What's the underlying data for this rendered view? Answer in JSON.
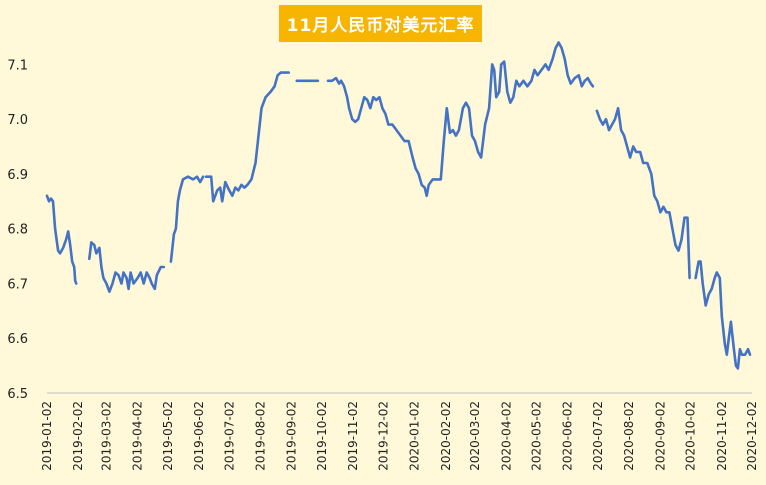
{
  "chart_data": {
    "type": "line",
    "title": "11月人民币对美元汇率",
    "xlabel": "",
    "ylabel": "",
    "ylim": [
      6.5,
      7.15
    ],
    "yticks": [
      "6.5",
      "6.6",
      "6.7",
      "6.8",
      "6.9",
      "7.0",
      "7.1"
    ],
    "xticks": [
      "2019-01-02",
      "2019-02-02",
      "2019-03-02",
      "2019-04-02",
      "2019-05-02",
      "2019-06-02",
      "2019-07-02",
      "2019-08-02",
      "2019-09-02",
      "2019-10-02",
      "2019-11-02",
      "2019-12-02",
      "2020-01-02",
      "2020-02-02",
      "2020-03-02",
      "2020-04-02",
      "2020-05-02",
      "2020-06-02",
      "2020-07-02",
      "2020-08-02",
      "2020-09-02",
      "2020-10-02",
      "2020-11-02",
      "2020-12-02"
    ],
    "grid": false,
    "line_color": "#4472c4",
    "series": [
      {
        "segments": [
          [
            [
              "2019-01-02",
              6.86
            ],
            [
              "2019-01-04",
              6.85
            ],
            [
              "2019-01-06",
              6.855
            ],
            [
              "2019-01-08",
              6.85
            ],
            [
              "2019-01-10",
              6.8
            ],
            [
              "2019-01-13",
              6.76
            ],
            [
              "2019-01-15",
              6.755
            ],
            [
              "2019-01-18",
              6.765
            ],
            [
              "2019-01-21",
              6.78
            ],
            [
              "2019-01-23",
              6.795
            ],
            [
              "2019-01-25",
              6.77
            ],
            [
              "2019-01-27",
              6.74
            ],
            [
              "2019-01-29",
              6.73
            ],
            [
              "2019-01-30",
              6.705
            ],
            [
              "2019-01-31",
              6.7
            ]
          ],
          [
            [
              "2019-02-13",
              6.745
            ],
            [
              "2019-02-15",
              6.775
            ],
            [
              "2019-02-18",
              6.77
            ],
            [
              "2019-02-20",
              6.755
            ],
            [
              "2019-02-23",
              6.765
            ],
            [
              "2019-02-25",
              6.73
            ],
            [
              "2019-02-27",
              6.71
            ],
            [
              "2019-03-02",
              6.7
            ],
            [
              "2019-03-05",
              6.685
            ],
            [
              "2019-03-08",
              6.7
            ],
            [
              "2019-03-11",
              6.72
            ],
            [
              "2019-03-14",
              6.715
            ],
            [
              "2019-03-17",
              6.7
            ],
            [
              "2019-03-19",
              6.72
            ],
            [
              "2019-03-22",
              6.71
            ],
            [
              "2019-03-24",
              6.69
            ],
            [
              "2019-03-26",
              6.72
            ],
            [
              "2019-03-29",
              6.7
            ],
            [
              "2019-04-02",
              6.71
            ],
            [
              "2019-04-05",
              6.72
            ],
            [
              "2019-04-08",
              6.7
            ],
            [
              "2019-04-11",
              6.72
            ],
            [
              "2019-04-14",
              6.71
            ],
            [
              "2019-04-16",
              6.7
            ],
            [
              "2019-04-19",
              6.69
            ],
            [
              "2019-04-21",
              6.715
            ],
            [
              "2019-04-25",
              6.73
            ],
            [
              "2019-04-28",
              6.73
            ]
          ],
          [
            [
              "2019-05-05",
              6.74
            ],
            [
              "2019-05-08",
              6.79
            ],
            [
              "2019-05-10",
              6.8
            ],
            [
              "2019-05-12",
              6.85
            ],
            [
              "2019-05-14",
              6.87
            ],
            [
              "2019-05-17",
              6.89
            ],
            [
              "2019-05-22",
              6.895
            ],
            [
              "2019-05-27",
              6.89
            ],
            [
              "2019-05-31",
              6.895
            ],
            [
              "2019-06-03",
              6.885
            ],
            [
              "2019-06-06",
              6.895
            ]
          ],
          [
            [
              "2019-06-09",
              6.895
            ],
            [
              "2019-06-14",
              6.895
            ],
            [
              "2019-06-16",
              6.85
            ],
            [
              "2019-06-20",
              6.87
            ],
            [
              "2019-06-23",
              6.875
            ],
            [
              "2019-06-25",
              6.85
            ],
            [
              "2019-06-28",
              6.885
            ],
            [
              "2019-07-02",
              6.87
            ],
            [
              "2019-07-05",
              6.86
            ],
            [
              "2019-07-08",
              6.875
            ],
            [
              "2019-07-11",
              6.87
            ],
            [
              "2019-07-14",
              6.88
            ],
            [
              "2019-07-17",
              6.875
            ],
            [
              "2019-07-20",
              6.88
            ],
            [
              "2019-07-24",
              6.89
            ],
            [
              "2019-07-28",
              6.92
            ],
            [
              "2019-07-31",
              6.97
            ],
            [
              "2019-08-03",
              7.02
            ],
            [
              "2019-08-07",
              7.04
            ],
            [
              "2019-08-12",
              7.05
            ],
            [
              "2019-08-16",
              7.06
            ],
            [
              "2019-08-19",
              7.08
            ],
            [
              "2019-08-22",
              7.085
            ],
            [
              "2019-08-26",
              7.085
            ],
            [
              "2019-08-30",
              7.085
            ]
          ],
          [
            [
              "2019-09-07",
              7.07
            ],
            [
              "2019-09-14",
              7.07
            ],
            [
              "2019-09-21",
              7.07
            ],
            [
              "2019-09-28",
              7.07
            ]
          ],
          [
            [
              "2019-10-08",
              7.07
            ],
            [
              "2019-10-12",
              7.07
            ],
            [
              "2019-10-16",
              7.075
            ],
            [
              "2019-10-19",
              7.065
            ],
            [
              "2019-10-21",
              7.07
            ],
            [
              "2019-10-24",
              7.06
            ],
            [
              "2019-10-27",
              7.04
            ],
            [
              "2019-10-29",
              7.02
            ],
            [
              "2019-11-01",
              7.0
            ],
            [
              "2019-11-04",
              6.995
            ],
            [
              "2019-11-07",
              7.0
            ],
            [
              "2019-11-10",
              7.02
            ],
            [
              "2019-11-13",
              7.04
            ],
            [
              "2019-11-16",
              7.035
            ],
            [
              "2019-11-19",
              7.02
            ],
            [
              "2019-11-22",
              7.04
            ],
            [
              "2019-11-25",
              7.035
            ],
            [
              "2019-11-28",
              7.04
            ],
            [
              "2019-12-01",
              7.02
            ],
            [
              "2019-12-04",
              7.01
            ],
            [
              "2019-12-07",
              6.99
            ],
            [
              "2019-12-11",
              6.99
            ],
            [
              "2019-12-15",
              6.98
            ],
            [
              "2019-12-19",
              6.97
            ],
            [
              "2019-12-23",
              6.96
            ],
            [
              "2019-12-27",
              6.96
            ],
            [
              "2019-12-31",
              6.93
            ],
            [
              "2020-01-03",
              6.91
            ],
            [
              "2020-01-06",
              6.9
            ],
            [
              "2020-01-09",
              6.88
            ],
            [
              "2020-01-12",
              6.875
            ],
            [
              "2020-01-14",
              6.86
            ],
            [
              "2020-01-16",
              6.88
            ],
            [
              "2020-01-20",
              6.89
            ],
            [
              "2020-01-24",
              6.89
            ],
            [
              "2020-01-28",
              6.89
            ],
            [
              "2020-01-31",
              6.96
            ],
            [
              "2020-02-03",
              7.02
            ],
            [
              "2020-02-06",
              6.975
            ],
            [
              "2020-02-09",
              6.98
            ],
            [
              "2020-02-12",
              6.97
            ],
            [
              "2020-02-15",
              6.98
            ],
            [
              "2020-02-19",
              7.02
            ],
            [
              "2020-02-22",
              7.03
            ],
            [
              "2020-02-25",
              7.02
            ],
            [
              "2020-02-28",
              6.97
            ],
            [
              "2020-03-02",
              6.96
            ],
            [
              "2020-03-05",
              6.94
            ],
            [
              "2020-03-08",
              6.93
            ],
            [
              "2020-03-12",
              6.99
            ],
            [
              "2020-03-16",
              7.02
            ],
            [
              "2020-03-19",
              7.1
            ],
            [
              "2020-03-21",
              7.09
            ],
            [
              "2020-03-23",
              7.04
            ],
            [
              "2020-03-26",
              7.05
            ],
            [
              "2020-03-28",
              7.1
            ],
            [
              "2020-03-31",
              7.105
            ],
            [
              "2020-04-03",
              7.05
            ],
            [
              "2020-04-06",
              7.03
            ],
            [
              "2020-04-09",
              7.04
            ],
            [
              "2020-04-12",
              7.07
            ],
            [
              "2020-04-15",
              7.06
            ],
            [
              "2020-04-19",
              7.07
            ],
            [
              "2020-04-23",
              7.06
            ],
            [
              "2020-04-27",
              7.07
            ],
            [
              "2020-04-30",
              7.09
            ],
            [
              "2020-05-03",
              7.08
            ],
            [
              "2020-05-07",
              7.09
            ],
            [
              "2020-05-11",
              7.1
            ],
            [
              "2020-05-14",
              7.09
            ],
            [
              "2020-05-18",
              7.11
            ],
            [
              "2020-05-21",
              7.13
            ],
            [
              "2020-05-24",
              7.14
            ],
            [
              "2020-05-27",
              7.13
            ],
            [
              "2020-05-30",
              7.11
            ],
            [
              "2020-06-02",
              7.08
            ],
            [
              "2020-06-05",
              7.065
            ],
            [
              "2020-06-09",
              7.075
            ],
            [
              "2020-06-13",
              7.08
            ],
            [
              "2020-06-16",
              7.06
            ],
            [
              "2020-06-19",
              7.07
            ],
            [
              "2020-06-22",
              7.075
            ],
            [
              "2020-06-25",
              7.065
            ],
            [
              "2020-06-27",
              7.06
            ]
          ],
          [
            [
              "2020-07-01",
              7.015
            ],
            [
              "2020-07-04",
              7.0
            ],
            [
              "2020-07-07",
              6.99
            ],
            [
              "2020-07-10",
              7.0
            ],
            [
              "2020-07-13",
              6.98
            ],
            [
              "2020-07-16",
              6.99
            ],
            [
              "2020-07-19",
              7.0
            ],
            [
              "2020-07-22",
              7.02
            ],
            [
              "2020-07-25",
              6.98
            ],
            [
              "2020-07-28",
              6.97
            ],
            [
              "2020-07-31",
              6.95
            ],
            [
              "2020-08-03",
              6.93
            ],
            [
              "2020-08-06",
              6.95
            ],
            [
              "2020-08-09",
              6.94
            ],
            [
              "2020-08-13",
              6.94
            ],
            [
              "2020-08-16",
              6.92
            ],
            [
              "2020-08-20",
              6.92
            ],
            [
              "2020-08-24",
              6.9
            ],
            [
              "2020-08-27",
              6.86
            ],
            [
              "2020-08-30",
              6.85
            ],
            [
              "2020-09-02",
              6.83
            ],
            [
              "2020-09-05",
              6.84
            ],
            [
              "2020-09-08",
              6.83
            ],
            [
              "2020-09-11",
              6.83
            ],
            [
              "2020-09-14",
              6.8
            ],
            [
              "2020-09-17",
              6.77
            ],
            [
              "2020-09-20",
              6.76
            ],
            [
              "2020-09-23",
              6.78
            ],
            [
              "2020-09-26",
              6.82
            ],
            [
              "2020-09-29",
              6.82
            ],
            [
              "2020-10-01",
              6.71
            ]
          ],
          [
            [
              "2020-10-07",
              6.71
            ],
            [
              "2020-10-10",
              6.74
            ],
            [
              "2020-10-12",
              6.74
            ],
            [
              "2020-10-14",
              6.7
            ],
            [
              "2020-10-17",
              6.66
            ],
            [
              "2020-10-20",
              6.68
            ],
            [
              "2020-10-23",
              6.69
            ],
            [
              "2020-10-26",
              6.71
            ],
            [
              "2020-10-28",
              6.72
            ],
            [
              "2020-10-31",
              6.71
            ],
            [
              "2020-11-02",
              6.64
            ],
            [
              "2020-11-05",
              6.59
            ],
            [
              "2020-11-07",
              6.57
            ],
            [
              "2020-11-09",
              6.6
            ],
            [
              "2020-11-11",
              6.63
            ],
            [
              "2020-11-14",
              6.58
            ],
            [
              "2020-11-16",
              6.55
            ],
            [
              "2020-11-18",
              6.545
            ],
            [
              "2020-11-20",
              6.58
            ],
            [
              "2020-11-22",
              6.57
            ],
            [
              "2020-11-25",
              6.57
            ],
            [
              "2020-11-28",
              6.58
            ],
            [
              "2020-11-30",
              6.57
            ]
          ]
        ]
      }
    ]
  }
}
